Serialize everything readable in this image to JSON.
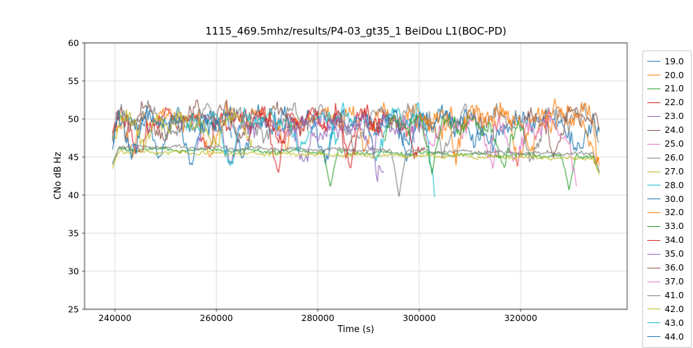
{
  "chart_data": {
    "type": "line",
    "title": "1115_469.5mhz/results/P4-03_gt35_1 BeiDou L1(BOC-PD)",
    "xlabel": "Time (s)",
    "ylabel": "CNo dB Hz",
    "xlim": [
      234000,
      341000
    ],
    "ylim": [
      25,
      60
    ],
    "xticks": [
      240000,
      260000,
      280000,
      300000,
      320000
    ],
    "yticks": [
      25,
      30,
      35,
      40,
      45,
      50,
      55,
      60
    ],
    "grid": true,
    "grid_color": "#d0d0d0",
    "frame_color": "#000000",
    "legend_position": "right-outside",
    "description": "Noisy C/No traces around 44-52 dB-Hz with periodic fade dips; a few smooth slowly-declining traces around 44.5-46.5 dB-Hz. Data spans roughly 239500-335500 s. Series parameters regenerate the approximate traces.",
    "series": [
      {
        "name": "19.0",
        "color": "#1f77b4",
        "x0": 239500,
        "x1": 335500,
        "base": 49.9,
        "slope": -0.3,
        "noise": 0.6,
        "wobble": 0.8,
        "wobble_period": 5200,
        "dip_period": 16500,
        "dip_width": 2600,
        "dip_depth": 4.5,
        "dip_offset": 9000,
        "seed": 11
      },
      {
        "name": "20.0",
        "color": "#ff7f0e",
        "x0": 239500,
        "x1": 335500,
        "base": 50.3,
        "slope": -0.2,
        "noise": 0.6,
        "wobble": 0.8,
        "wobble_period": 6100,
        "dip_period": 15200,
        "dip_width": 2400,
        "dip_depth": 4.2,
        "dip_offset": 4000,
        "seed": 22
      },
      {
        "name": "21.0",
        "color": "#2ca02c",
        "x0": 239500,
        "x1": 335500,
        "base": 46.1,
        "slope": -1.0,
        "noise": 0.13,
        "wobble": 0.15,
        "wobble_period": 9000,
        "dip_period": 47000,
        "dip_width": 1500,
        "dip_depth": 5.2,
        "dip_offset": 43000,
        "seed": 33
      },
      {
        "name": "22.0",
        "color": "#d62728",
        "x0": 239500,
        "x1": 301000,
        "base": 50.0,
        "slope": -0.2,
        "noise": 0.6,
        "wobble": 0.9,
        "wobble_period": 4800,
        "dip_period": 13500,
        "dip_width": 2500,
        "dip_depth": 5.0,
        "dip_offset": 5500,
        "seed": 44
      },
      {
        "name": "23.0",
        "color": "#9467bd",
        "x0": 256000,
        "x1": 299000,
        "base": 49.2,
        "slope": 0,
        "noise": 0.55,
        "wobble": 0.8,
        "wobble_period": 5600,
        "dip_period": 14000,
        "dip_width": 2300,
        "dip_depth": 4.5,
        "dip_offset": 7000,
        "seed": 55
      },
      {
        "name": "24.0",
        "color": "#8c564b",
        "x0": 242000,
        "x1": 276000,
        "base": 50.6,
        "slope": 0,
        "noise": 0.6,
        "wobble": 0.9,
        "wobble_period": 5200,
        "dip_period": 15000,
        "dip_width": 2500,
        "dip_depth": 4.5,
        "dip_offset": 8000,
        "seed": 66
      },
      {
        "name": "25.0",
        "color": "#e377c2",
        "x0": 296000,
        "x1": 316000,
        "base": 49.4,
        "slope": 0,
        "noise": 0.55,
        "wobble": 0.8,
        "wobble_period": 5000,
        "dip_period": 12500,
        "dip_width": 2400,
        "dip_depth": 4.8,
        "dip_offset": 6000,
        "seed": 77
      },
      {
        "name": "26.0",
        "color": "#7f7f7f",
        "x0": 239500,
        "x1": 335500,
        "base": 50.4,
        "slope": -0.2,
        "noise": 0.6,
        "wobble": 0.9,
        "wobble_period": 5700,
        "dip_period": 17500,
        "dip_width": 2700,
        "dip_depth": 5.0,
        "dip_offset": 12500,
        "seed": 88
      },
      {
        "name": "27.0",
        "color": "#bcbd22",
        "x0": 239500,
        "x1": 267000,
        "base": 49.6,
        "slope": 0,
        "noise": 0.55,
        "wobble": 0.8,
        "wobble_period": 5300,
        "dip_period": 13000,
        "dip_width": 2300,
        "dip_depth": 4.3,
        "dip_offset": 6500,
        "seed": 99
      },
      {
        "name": "28.0",
        "color": "#17becf",
        "x0": 282000,
        "x1": 303000,
        "base": 50.1,
        "slope": 0,
        "noise": 0.55,
        "wobble": 0.9,
        "wobble_period": 5100,
        "dip_period": 11500,
        "dip_width": 2600,
        "dip_depth": 5.2,
        "dip_offset": 9500,
        "seed": 111
      },
      {
        "name": "30.0",
        "color": "#1f77b4",
        "x0": 291000,
        "x1": 313000,
        "base": 50.0,
        "slope": 0,
        "noise": 0.55,
        "wobble": 0.8,
        "wobble_period": 4900,
        "dip_period": 12800,
        "dip_width": 2400,
        "dip_depth": 4.6,
        "dip_offset": 6800,
        "seed": 122
      },
      {
        "name": "32.0",
        "color": "#ff7f0e",
        "x0": 299000,
        "x1": 335500,
        "base": 50.4,
        "slope": 0,
        "noise": 0.6,
        "wobble": 0.9,
        "wobble_period": 5500,
        "dip_period": 14500,
        "dip_width": 2500,
        "dip_depth": 4.4,
        "dip_offset": 8200,
        "seed": 133
      },
      {
        "name": "33.0",
        "color": "#2ca02c",
        "x0": 293000,
        "x1": 321000,
        "base": 49.4,
        "slope": -0.3,
        "noise": 0.55,
        "wobble": 0.8,
        "wobble_period": 5200,
        "dip_period": 13800,
        "dip_width": 2500,
        "dip_depth": 5.5,
        "dip_offset": 9500,
        "seed": 144
      },
      {
        "name": "34.0",
        "color": "#d62728",
        "x0": 266000,
        "x1": 293000,
        "base": 50.1,
        "slope": 0,
        "noise": 0.6,
        "wobble": 0.9,
        "wobble_period": 5000,
        "dip_period": 13200,
        "dip_width": 2400,
        "dip_depth": 5.0,
        "dip_offset": 7200,
        "seed": 155
      },
      {
        "name": "35.0",
        "color": "#9467bd",
        "x0": 274000,
        "x1": 293000,
        "base": 49.3,
        "slope": 0,
        "noise": 0.55,
        "wobble": 0.8,
        "wobble_period": 5400,
        "dip_period": 12000,
        "dip_width": 2300,
        "dip_depth": 4.2,
        "dip_offset": 5800,
        "seed": 166
      },
      {
        "name": "36.0",
        "color": "#8c564b",
        "x0": 320000,
        "x1": 335500,
        "base": 50.3,
        "slope": 0,
        "noise": 0.6,
        "wobble": 0.9,
        "wobble_period": 5100,
        "dip_period": 12500,
        "dip_width": 2400,
        "dip_depth": 4.0,
        "dip_offset": 6400,
        "seed": 177
      },
      {
        "name": "37.0",
        "color": "#e377c2",
        "x0": 314000,
        "x1": 331000,
        "base": 48.9,
        "slope": 0,
        "noise": 0.55,
        "wobble": 0.9,
        "wobble_period": 5000,
        "dip_period": 11800,
        "dip_width": 2600,
        "dip_depth": 4.8,
        "dip_offset": 5200,
        "seed": 188
      },
      {
        "name": "41.0",
        "color": "#7f7f7f",
        "x0": 239500,
        "x1": 335500,
        "base": 46.4,
        "slope": -1.0,
        "noise": 0.13,
        "wobble": 0.15,
        "wobble_period": 8000,
        "dip_period": 56500,
        "dip_width": 1600,
        "dip_depth": 4.6,
        "dip_offset": 56500,
        "seed": 199
      },
      {
        "name": "42.0",
        "color": "#bcbd22",
        "x0": 239500,
        "x1": 335500,
        "base": 45.7,
        "slope": -0.9,
        "noise": 0.12,
        "wobble": 0.12,
        "wobble_period": 7000,
        "dip_period": 0,
        "dip_width": 0,
        "dip_depth": 0,
        "dip_offset": 0,
        "seed": 210
      },
      {
        "name": "43.0",
        "color": "#17becf",
        "x0": 254000,
        "x1": 284000,
        "base": 49.9,
        "slope": 0,
        "noise": 0.55,
        "wobble": 0.9,
        "wobble_period": 5300,
        "dip_period": 13600,
        "dip_width": 2700,
        "dip_depth": 5.4,
        "dip_offset": 8800,
        "seed": 221
      },
      {
        "name": "44.0",
        "color": "#1f77b4",
        "x0": 239500,
        "x1": 263000,
        "base": 49.6,
        "slope": 0,
        "noise": 0.55,
        "wobble": 0.8,
        "wobble_period": 5100,
        "dip_period": 12000,
        "dip_width": 2400,
        "dip_depth": 5.0,
        "dip_offset": 3800,
        "seed": 232
      }
    ]
  }
}
